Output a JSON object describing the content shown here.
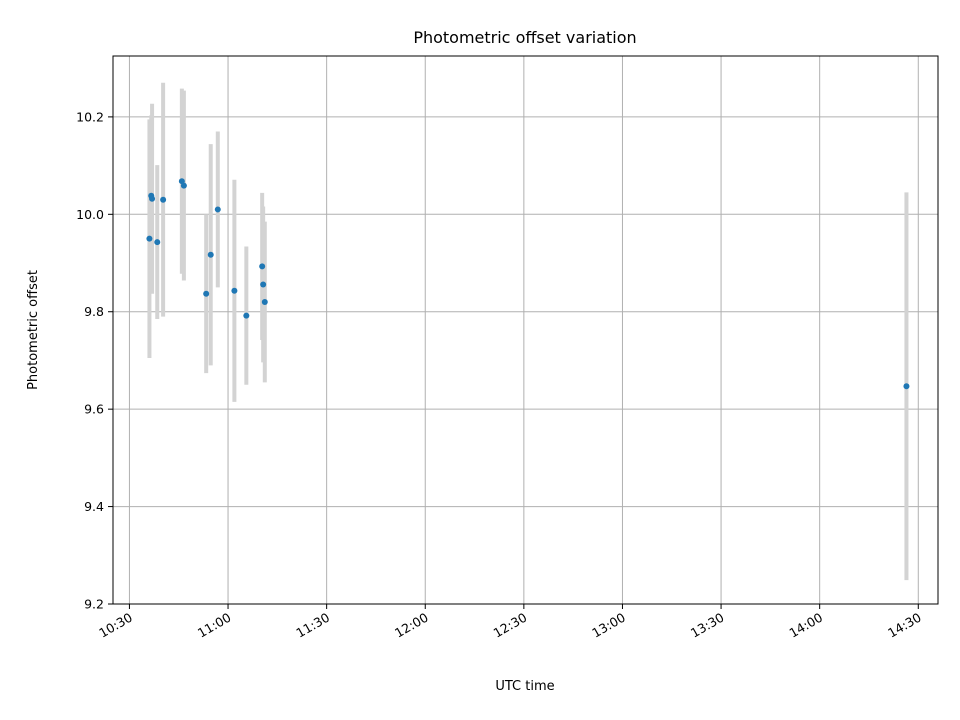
{
  "chart_data": {
    "type": "scatter",
    "title": "Photometric offset variation",
    "xlabel": "UTC time",
    "ylabel": "Photometric offset",
    "xlim": [
      "10:25",
      "14:36"
    ],
    "ylim": [
      9.2,
      10.325
    ],
    "x_ticks": [
      "10:30",
      "11:00",
      "11:30",
      "12:00",
      "12:30",
      "13:00",
      "13:30",
      "14:00",
      "14:30"
    ],
    "y_ticks": [
      9.2,
      9.4,
      9.6,
      9.8,
      10.0,
      10.2
    ],
    "grid": true,
    "point_color": "#1f77b4",
    "errorbar_color": "#d3d3d3",
    "series": [
      {
        "points": [
          {
            "x": "10:36:05",
            "y": 9.95,
            "err": 0.245
          },
          {
            "x": "10:36:38",
            "y": 10.038,
            "err": 0.165
          },
          {
            "x": "10:36:53",
            "y": 10.032,
            "err": 0.195
          },
          {
            "x": "10:38:28",
            "y": 9.943,
            "err": 0.158
          },
          {
            "x": "10:40:15",
            "y": 10.03,
            "err": 0.24
          },
          {
            "x": "10:45:57",
            "y": 10.068,
            "err": 0.19
          },
          {
            "x": "10:46:34",
            "y": 10.059,
            "err": 0.195
          },
          {
            "x": "10:53:21",
            "y": 9.837,
            "err": 0.163
          },
          {
            "x": "10:54:44",
            "y": 9.917,
            "err": 0.227
          },
          {
            "x": "10:56:53",
            "y": 10.01,
            "err": 0.16
          },
          {
            "x": "11:01:56",
            "y": 9.843,
            "err": 0.228
          },
          {
            "x": "11:05:34",
            "y": 9.792,
            "err": 0.142
          },
          {
            "x": "11:10:23",
            "y": 9.893,
            "err": 0.151
          },
          {
            "x": "11:10:41",
            "y": 9.856,
            "err": 0.16
          },
          {
            "x": "11:11:11",
            "y": 9.82,
            "err": 0.165
          },
          {
            "x": "14:26:24",
            "y": 9.647,
            "err": 0.398
          }
        ]
      }
    ]
  }
}
